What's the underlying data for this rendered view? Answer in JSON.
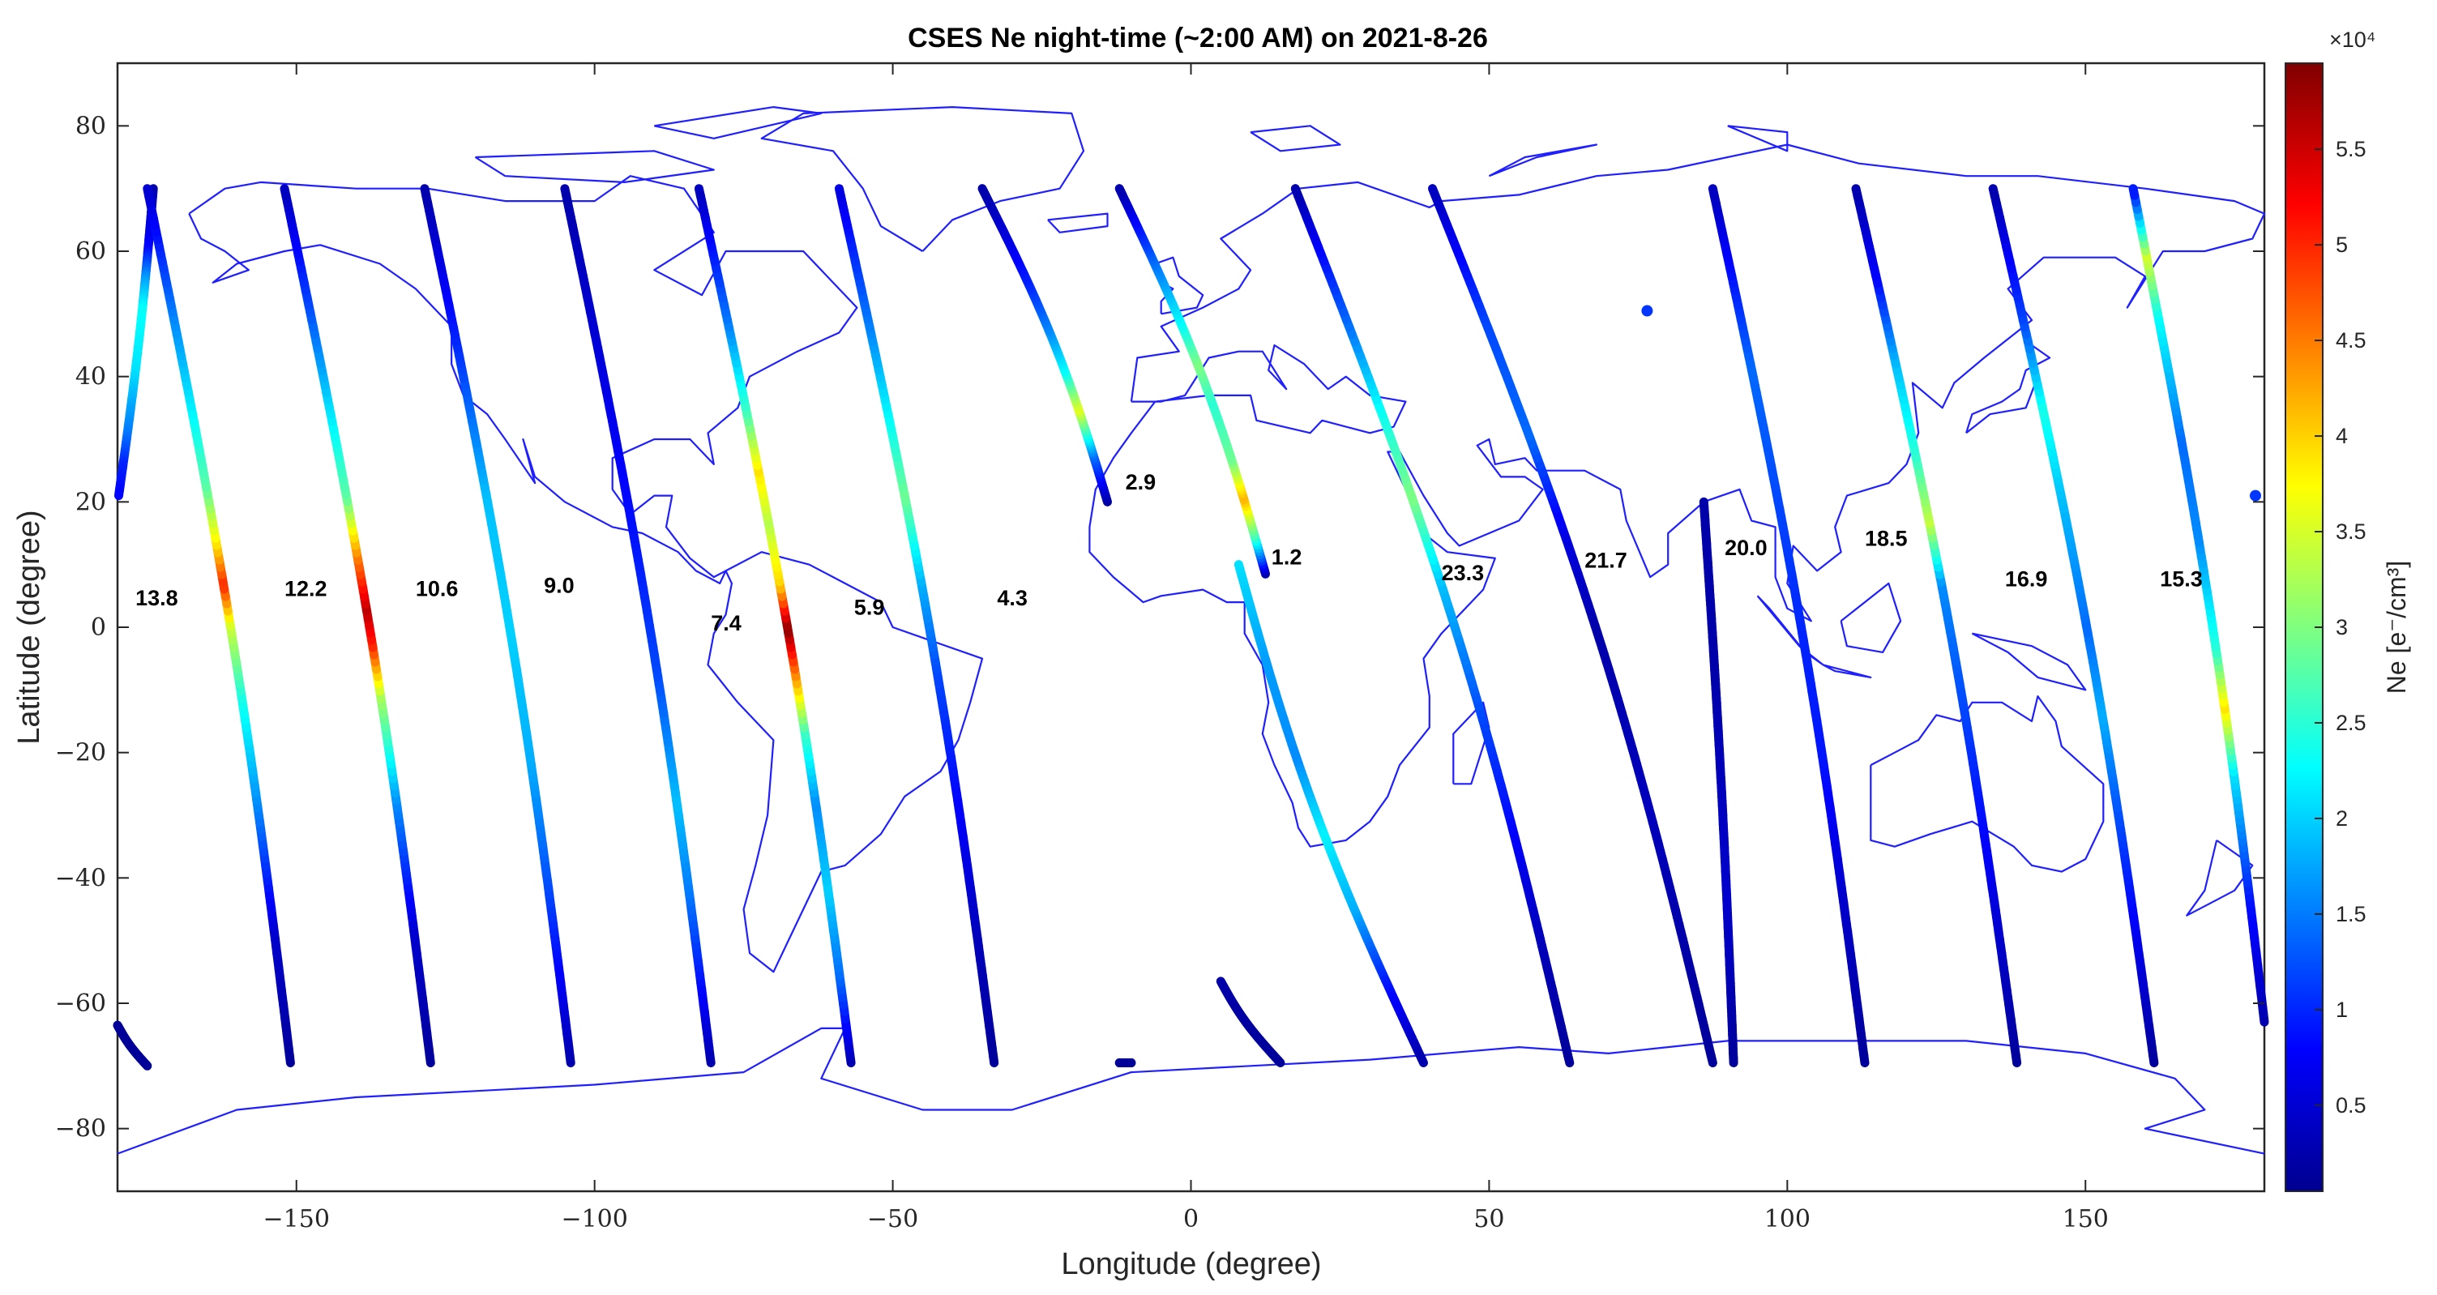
{
  "chart_data": {
    "type": "scatter",
    "title": "CSES Ne night-time (~2:00 AM) on 2021-8-26",
    "xlabel": "Longitude (degree)",
    "ylabel": "Latitude (degree)",
    "xlim": [
      -180,
      180
    ],
    "ylim": [
      -90,
      90
    ],
    "xticks": [
      -150,
      -100,
      -50,
      0,
      50,
      100,
      150
    ],
    "yticks": [
      -80,
      -60,
      -40,
      -20,
      0,
      20,
      40,
      60,
      80
    ],
    "grid": false,
    "basemap": "world coastlines",
    "colorbar": {
      "label": "Ne [e⁻/cm³]",
      "multiplier": "×10⁴",
      "colormap": "jet",
      "range": [
        0.05,
        5.95
      ],
      "ticks": [
        "0.5",
        "1",
        "1.5",
        "2",
        "2.5",
        "3",
        "3.5",
        "4",
        "4.5",
        "5",
        "5.5"
      ]
    },
    "colors": {
      "coastline": "#1f1fff",
      "axes": "#262626"
    },
    "orbits": [
      {
        "label": "13.8",
        "label_pos": [
          -177,
          3.5
        ],
        "start": [
          -174,
          70
        ],
        "end": [
          -179.8,
          21
        ],
        "ne_profile": [
          [
            0,
            0.3
          ],
          [
            0.2,
            0.8
          ],
          [
            0.3,
            1.7
          ],
          [
            0.4,
            2.3
          ],
          [
            0.6,
            2.1
          ],
          [
            0.8,
            1.5
          ],
          [
            0.9,
            1.0
          ],
          [
            1,
            0.8
          ]
        ]
      },
      {
        "label": "13.8-tail",
        "start": [
          -180,
          -63.5
        ],
        "end": [
          -175,
          -70
        ],
        "ne_profile": [
          [
            0,
            0.2
          ],
          [
            1,
            0.2
          ]
        ]
      },
      {
        "label": "12.2",
        "label_pos": [
          -152,
          5
        ],
        "start": [
          -151,
          -69.5
        ],
        "end": [
          -175,
          70
        ],
        "ne_profile": [
          [
            0,
            0.2
          ],
          [
            0.15,
            0.5
          ],
          [
            0.3,
            1.6
          ],
          [
            0.42,
            2.4
          ],
          [
            0.5,
            3.4
          ],
          [
            0.55,
            5.0
          ],
          [
            0.6,
            3.8
          ],
          [
            0.66,
            2.8
          ],
          [
            0.75,
            2.2
          ],
          [
            0.85,
            1.6
          ],
          [
            1,
            0.5
          ]
        ]
      },
      {
        "label": "10.6",
        "label_pos": [
          -130,
          5
        ],
        "start": [
          -127.5,
          -69.5
        ],
        "end": [
          -152,
          70
        ],
        "ne_profile": [
          [
            0,
            0.2
          ],
          [
            0.15,
            0.5
          ],
          [
            0.3,
            1.6
          ],
          [
            0.42,
            3.2
          ],
          [
            0.48,
            5.0
          ],
          [
            0.52,
            5.6
          ],
          [
            0.58,
            4.5
          ],
          [
            0.65,
            2.8
          ],
          [
            0.75,
            2.1
          ],
          [
            0.87,
            1.2
          ],
          [
            1,
            0.4
          ]
        ]
      },
      {
        "label": "9.0",
        "label_pos": [
          -108.5,
          5.5
        ],
        "start": [
          -104,
          -69.5
        ],
        "end": [
          -128.5,
          70
        ],
        "ne_profile": [
          [
            0,
            0.3
          ],
          [
            0.2,
            1.2
          ],
          [
            0.35,
            1.8
          ],
          [
            0.5,
            2.0
          ],
          [
            0.65,
            1.9
          ],
          [
            0.85,
            0.9
          ],
          [
            1,
            0.3
          ]
        ]
      },
      {
        "label": "7.4",
        "label_pos": [
          -80.5,
          -0.5
        ],
        "start": [
          -80.5,
          -69.5
        ],
        "end": [
          -105,
          70
        ],
        "ne_profile": [
          [
            0,
            0.3
          ],
          [
            0.2,
            1.5
          ],
          [
            0.3,
            1.9
          ],
          [
            0.45,
            1.2
          ],
          [
            0.6,
            0.9
          ],
          [
            0.8,
            0.6
          ],
          [
            1,
            0.3
          ]
        ]
      },
      {
        "label": "5.9",
        "label_pos": [
          -56.5,
          2
        ],
        "start": [
          -57,
          -69.5
        ],
        "end": [
          -82.5,
          70
        ],
        "ne_profile": [
          [
            0,
            0.3
          ],
          [
            0.1,
            1.4
          ],
          [
            0.2,
            2.0
          ],
          [
            0.3,
            1.6
          ],
          [
            0.38,
            2.6
          ],
          [
            0.46,
            4.8
          ],
          [
            0.5,
            5.9
          ],
          [
            0.55,
            4.0
          ],
          [
            0.62,
            3.3
          ],
          [
            0.68,
            3.9
          ],
          [
            0.75,
            2.6
          ],
          [
            0.85,
            1.5
          ],
          [
            1,
            0.4
          ]
        ]
      },
      {
        "label": "4.3",
        "label_pos": [
          -32.5,
          3.5
        ],
        "start": [
          -33,
          -69.5
        ],
        "end": [
          -59,
          70
        ],
        "ne_profile": [
          [
            0,
            0.2
          ],
          [
            0.15,
            0.4
          ],
          [
            0.3,
            0.8
          ],
          [
            0.45,
            1.2
          ],
          [
            0.55,
            1.8
          ],
          [
            0.65,
            2.9
          ],
          [
            0.75,
            2.2
          ],
          [
            0.85,
            1.5
          ],
          [
            1,
            0.6
          ]
        ]
      },
      {
        "label": "2.9",
        "label_pos": [
          -11,
          22
        ],
        "start": [
          -14,
          20
        ],
        "end": [
          -35,
          70
        ],
        "ne_profile": [
          [
            0,
            0.2
          ],
          [
            0.15,
            1.4
          ],
          [
            0.3,
            3.6
          ],
          [
            0.42,
            2.3
          ],
          [
            0.55,
            1.6
          ],
          [
            0.7,
            1.0
          ],
          [
            0.85,
            0.6
          ],
          [
            1,
            0.3
          ]
        ]
      },
      {
        "label": "1.2",
        "label_pos": [
          13.5,
          10
        ],
        "start": [
          -10,
          -69.5
        ],
        "end": [
          -12,
          -69.5
        ],
        "ne_profile": [
          [
            0,
            0.2
          ],
          [
            1,
            0.2
          ]
        ]
      },
      {
        "label": "1.2-main",
        "start": [
          12.5,
          8.5
        ],
        "end": [
          -12,
          70
        ],
        "ne_profile": [
          [
            0,
            0.2
          ],
          [
            0.1,
            2.6
          ],
          [
            0.2,
            4.2
          ],
          [
            0.3,
            2.9
          ],
          [
            0.45,
            2.5
          ],
          [
            0.55,
            3.0
          ],
          [
            0.65,
            2.3
          ],
          [
            0.8,
            1.5
          ],
          [
            1,
            0.3
          ]
        ]
      },
      {
        "label": "1.2-south",
        "start": [
          8,
          10
        ],
        "end": [
          39,
          -69.5
        ],
        "ne_profile": [
          [
            0,
            2.1
          ],
          [
            0.2,
            1.7
          ],
          [
            0.4,
            1.6
          ],
          [
            0.55,
            2.2
          ],
          [
            0.7,
            1.8
          ],
          [
            0.85,
            0.9
          ],
          [
            1,
            0.3
          ]
        ]
      },
      {
        "label": "1.2-fragment",
        "start": [
          5,
          -56.5
        ],
        "end": [
          15,
          -69.5
        ],
        "ne_profile": [
          [
            0,
            0.3
          ],
          [
            1,
            0.2
          ]
        ]
      },
      {
        "label": "23.3",
        "label_pos": [
          42,
          7.5
        ],
        "start": [
          63.5,
          -69.5
        ],
        "end": [
          17.5,
          70
        ],
        "ne_profile": [
          [
            0,
            0.2
          ],
          [
            0.15,
            0.4
          ],
          [
            0.3,
            0.9
          ],
          [
            0.4,
            1.2
          ],
          [
            0.55,
            1.9
          ],
          [
            0.65,
            3.0
          ],
          [
            0.75,
            2.3
          ],
          [
            0.85,
            1.4
          ],
          [
            1,
            0.3
          ]
        ]
      },
      {
        "label": "21.7",
        "label_pos": [
          66,
          9.5
        ],
        "start": [
          87.5,
          -69.5
        ],
        "end": [
          40.5,
          70
        ],
        "ne_profile": [
          [
            0,
            0.2
          ],
          [
            0.3,
            0.4
          ],
          [
            0.5,
            0.3
          ],
          [
            0.6,
            0.6
          ],
          [
            0.72,
            1.4
          ],
          [
            0.85,
            1.2
          ],
          [
            1,
            0.4
          ]
        ]
      },
      {
        "label": "20.0",
        "label_pos": [
          89.5,
          11.5
        ],
        "start": [
          91,
          -69.5
        ],
        "end": [
          86,
          20
        ],
        "ne_profile": [
          [
            0,
            0.2
          ],
          [
            0.3,
            0.5
          ],
          [
            0.5,
            0.4
          ],
          [
            0.7,
            0.3
          ],
          [
            1,
            0.3
          ]
        ]
      },
      {
        "label": "18.5",
        "label_pos": [
          113,
          13
        ],
        "start": [
          113,
          -69.5
        ],
        "end": [
          87.5,
          70
        ],
        "ne_profile": [
          [
            0,
            0.2
          ],
          [
            0.2,
            0.5
          ],
          [
            0.35,
            0.9
          ],
          [
            0.5,
            1.0
          ],
          [
            0.65,
            1.2
          ],
          [
            0.8,
            1.4
          ],
          [
            1,
            0.4
          ]
        ]
      },
      {
        "label": "16.9",
        "label_pos": [
          136.5,
          6.5
        ],
        "start": [
          138.5,
          -69.5
        ],
        "end": [
          111.5,
          70
        ],
        "ne_profile": [
          [
            0,
            0.2
          ],
          [
            0.15,
            0.5
          ],
          [
            0.3,
            0.9
          ],
          [
            0.45,
            1.3
          ],
          [
            0.55,
            1.6
          ],
          [
            0.62,
            3.4
          ],
          [
            0.7,
            2.5
          ],
          [
            0.8,
            1.9
          ],
          [
            0.9,
            0.8
          ],
          [
            1,
            0.3
          ]
        ]
      },
      {
        "label": "15.3",
        "label_pos": [
          162.5,
          6.5
        ],
        "start": [
          161.5,
          -69.5
        ],
        "end": [
          134.5,
          70
        ],
        "ne_profile": [
          [
            0,
            0.2
          ],
          [
            0.15,
            0.7
          ],
          [
            0.3,
            1.3
          ],
          [
            0.4,
            1.8
          ],
          [
            0.5,
            1.4
          ],
          [
            0.65,
            1.9
          ],
          [
            0.75,
            2.4
          ],
          [
            0.85,
            1.2
          ],
          [
            1,
            0.3
          ]
        ]
      },
      {
        "label": "east-edge",
        "start": [
          180,
          -63
        ],
        "end": [
          158,
          70
        ],
        "ne_profile": [
          [
            0,
            0.3
          ],
          [
            0.15,
            0.9
          ],
          [
            0.3,
            2.1
          ],
          [
            0.38,
            3.9
          ],
          [
            0.45,
            2.5
          ],
          [
            0.58,
            1.6
          ],
          [
            0.7,
            1.4
          ],
          [
            0.85,
            2.3
          ],
          [
            0.92,
            3.5
          ],
          [
            1,
            0.8
          ]
        ]
      }
    ],
    "isolated_points": [
      {
        "lon": 76.5,
        "lat": 50.5,
        "ne": 1.1
      },
      {
        "lon": 178.5,
        "lat": 21,
        "ne": 1.1
      }
    ]
  }
}
